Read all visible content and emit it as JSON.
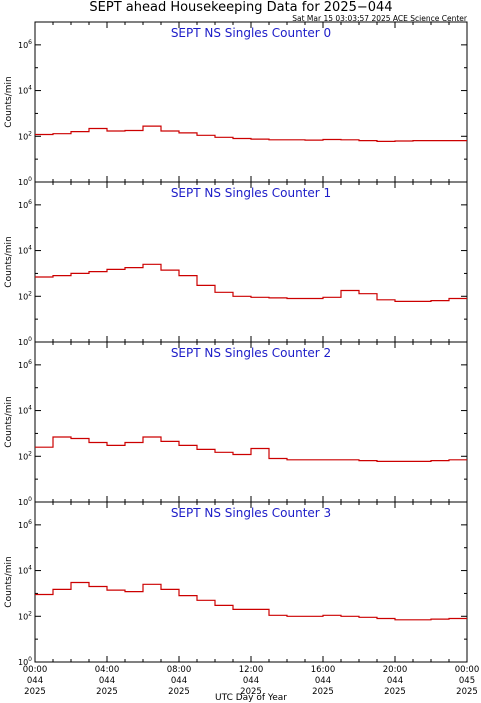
{
  "header": {
    "title": "SEPT ahead Housekeeping Data for 2025−044",
    "timestamp": "Sat Mar 15 03:03:57 2025 ACE Science Center"
  },
  "colors": {
    "trace": "#cc0000",
    "panel_title": "#1c1cc8",
    "axis": "#000000"
  },
  "x_axis": {
    "title": "UTC Day of Year",
    "ticks": [
      {
        "hour": 0,
        "time": "00:00",
        "doy": "044",
        "year": "2025"
      },
      {
        "hour": 4,
        "time": "04:00",
        "doy": "044",
        "year": "2025"
      },
      {
        "hour": 8,
        "time": "08:00",
        "doy": "044",
        "year": "2025"
      },
      {
        "hour": 12,
        "time": "12:00",
        "doy": "044",
        "year": "2025"
      },
      {
        "hour": 16,
        "time": "16:00",
        "doy": "044",
        "year": "2025"
      },
      {
        "hour": 20,
        "time": "20:00",
        "doy": "044",
        "year": "2025"
      },
      {
        "hour": 24,
        "time": "00:00",
        "doy": "045",
        "year": "2025"
      }
    ]
  },
  "chart_data": [
    {
      "type": "line",
      "step": true,
      "yscale": "log",
      "title": "SEPT NS Singles Counter 0",
      "ylabel": "Counts/min",
      "xlim": [
        0,
        24
      ],
      "ylim": [
        1,
        10000000
      ],
      "yticks": [
        1,
        100,
        10000,
        1000000
      ],
      "x": [
        0,
        1,
        2,
        3,
        4,
        5,
        6,
        7,
        8,
        9,
        10,
        11,
        12,
        13,
        14,
        15,
        16,
        17,
        18,
        19,
        20,
        21,
        22,
        23,
        24
      ],
      "series": [
        {
          "values": [
            120,
            130,
            160,
            220,
            170,
            180,
            280,
            170,
            140,
            110,
            90,
            80,
            75,
            70,
            70,
            68,
            72,
            70,
            65,
            60,
            62,
            65,
            65,
            65,
            65
          ]
        }
      ]
    },
    {
      "type": "line",
      "step": true,
      "yscale": "log",
      "title": "SEPT NS Singles Counter 1",
      "ylabel": "Counts/min",
      "xlim": [
        0,
        24
      ],
      "ylim": [
        1,
        10000000
      ],
      "yticks": [
        1,
        100,
        10000,
        1000000
      ],
      "x": [
        0,
        1,
        2,
        3,
        4,
        5,
        6,
        7,
        8,
        9,
        10,
        11,
        12,
        13,
        14,
        15,
        16,
        17,
        18,
        19,
        20,
        21,
        22,
        23,
        24
      ],
      "series": [
        {
          "values": [
            700,
            800,
            1000,
            1200,
            1500,
            1800,
            2500,
            1400,
            800,
            300,
            150,
            100,
            90,
            85,
            80,
            80,
            90,
            180,
            130,
            70,
            60,
            60,
            65,
            80,
            80
          ]
        }
      ]
    },
    {
      "type": "line",
      "step": true,
      "yscale": "log",
      "title": "SEPT NS Singles Counter 2",
      "ylabel": "Counts/min",
      "xlim": [
        0,
        24
      ],
      "ylim": [
        1,
        10000000
      ],
      "yticks": [
        1,
        100,
        10000,
        1000000
      ],
      "x": [
        0,
        1,
        2,
        3,
        4,
        5,
        6,
        7,
        8,
        9,
        10,
        11,
        12,
        13,
        14,
        15,
        16,
        17,
        18,
        19,
        20,
        21,
        22,
        23,
        24
      ],
      "series": [
        {
          "values": [
            250,
            700,
            600,
            400,
            300,
            400,
            700,
            450,
            300,
            200,
            150,
            120,
            220,
            80,
            70,
            70,
            70,
            70,
            65,
            60,
            60,
            60,
            65,
            70,
            70
          ]
        }
      ]
    },
    {
      "type": "line",
      "step": true,
      "yscale": "log",
      "title": "SEPT NS Singles Counter 3",
      "ylabel": "Counts/min",
      "xlim": [
        0,
        24
      ],
      "ylim": [
        1,
        10000000
      ],
      "yticks": [
        1,
        100,
        10000,
        1000000
      ],
      "x": [
        0,
        1,
        2,
        3,
        4,
        5,
        6,
        7,
        8,
        9,
        10,
        11,
        12,
        13,
        14,
        15,
        16,
        17,
        18,
        19,
        20,
        21,
        22,
        23,
        24
      ],
      "series": [
        {
          "values": [
            900,
            1500,
            3000,
            2000,
            1400,
            1200,
            2500,
            1500,
            800,
            500,
            300,
            200,
            200,
            110,
            100,
            100,
            110,
            100,
            90,
            80,
            70,
            70,
            75,
            80,
            80
          ]
        }
      ]
    }
  ]
}
